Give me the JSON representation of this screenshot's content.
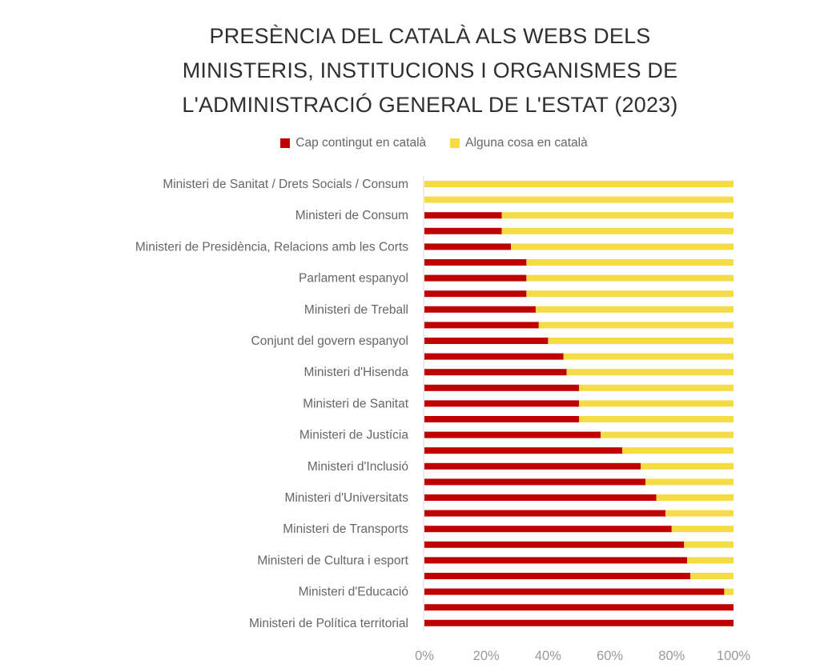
{
  "chart_data": {
    "type": "bar",
    "orientation": "horizontal",
    "stacked": true,
    "percent_stacked": true,
    "title": "PRESÈNCIA DEL CATALÀ ALS WEBS DELS MINISTERIS, INSTITUCIONS I ORGANISMES DE L'ADMINISTRACIÓ GENERAL DE L'ESTAT (2023)",
    "title_lines": [
      "PRESÈNCIA DEL CATALÀ ALS WEBS DELS",
      "MINISTERIS, INSTITUCIONS I ORGANISMES DE",
      "L'ADMINISTRACIÓ GENERAL DE L'ESTAT (2023)"
    ],
    "xlabel": "",
    "ylabel": "",
    "xlim": [
      0,
      100
    ],
    "x_ticks": [
      "0%",
      "20%",
      "40%",
      "60%",
      "80%",
      "100%"
    ],
    "x_tick_values": [
      0,
      20,
      40,
      60,
      80,
      100
    ],
    "grid": false,
    "legend_position": "top-center",
    "categories": [
      "Ministeri de Sanitat / Drets Socials / Consum",
      "",
      "Ministeri de Consum",
      "",
      "Ministeri de Presidència, Relacions amb les Corts",
      "",
      "Parlament espanyol",
      "",
      "Ministeri de Treball",
      "",
      "Conjunt del govern espanyol",
      "",
      "Ministeri d'Hisenda",
      "",
      "Ministeri de Sanitat",
      "",
      "Ministeri de Justícia",
      "",
      "Ministeri d'Inclusió",
      "",
      "Ministeri d'Universitats",
      "",
      "Ministeri de Transports",
      "",
      "Ministeri de Cultura i esport",
      "",
      "Ministeri d'Educació",
      "",
      "Ministeri de Política territorial"
    ],
    "series": [
      {
        "name": "Cap contingut en català",
        "color": "#C00000",
        "values": [
          0,
          0,
          25,
          25,
          28,
          33,
          33,
          33,
          36,
          37,
          40,
          45,
          46,
          50,
          50,
          50,
          57,
          64,
          70,
          71.5,
          75,
          78,
          80,
          84,
          85,
          86,
          97,
          100,
          100
        ]
      },
      {
        "name": "Alguna cosa en català",
        "color": "#F5DC45",
        "values": [
          100,
          100,
          75,
          75,
          72,
          67,
          67,
          67,
          64,
          63,
          60,
          55,
          54,
          50,
          50,
          50,
          43,
          36,
          30,
          28.5,
          25,
          22,
          20,
          16,
          15,
          14,
          3,
          0,
          0
        ]
      }
    ]
  },
  "legend": {
    "items": [
      {
        "label": "Cap contingut en català",
        "color": "#C00000"
      },
      {
        "label": "Alguna cosa en català",
        "color": "#F5DC45"
      }
    ]
  }
}
